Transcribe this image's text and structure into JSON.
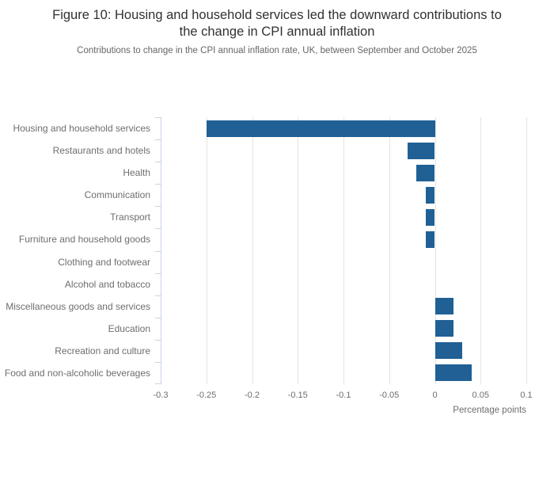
{
  "figure": {
    "title": "Figure 10: Housing and household services led the downward contributions to the change in CPI annual inflation",
    "subtitle": "Contributions to change in the CPI annual inflation rate, UK, between September and October 2025"
  },
  "chart_data": {
    "type": "bar",
    "orientation": "horizontal",
    "title": "Figure 10: Housing and household services led the downward contributions to the change in CPI annual inflation",
    "subtitle": "Contributions to change in the CPI annual inflation rate, UK, between September and October 2025",
    "categories": [
      "Housing and household services",
      "Restaurants and hotels",
      "Health",
      "Communication",
      "Transport",
      "Furniture and household goods",
      "Clothing and footwear",
      "Alcohol and tobacco",
      "Miscellaneous goods and services",
      "Education",
      "Recreation and culture",
      "Food and non-alcoholic beverages"
    ],
    "values": [
      -0.25,
      -0.03,
      -0.02,
      -0.01,
      -0.01,
      -0.01,
      0,
      0,
      0.02,
      0.02,
      0.03,
      0.04
    ],
    "xlabel": "Percentage points",
    "ylabel": "",
    "xlim": [
      -0.3,
      0.1
    ],
    "xticks": [
      -0.3,
      -0.25,
      -0.2,
      -0.15,
      -0.1,
      -0.05,
      0,
      0.05,
      0.1
    ],
    "xtick_labels": [
      "-0.3",
      "-0.25",
      "-0.2",
      "-0.15",
      "-0.1",
      "-0.05",
      "0",
      "0.05",
      "0.1"
    ],
    "grid": true,
    "legend": "none",
    "colors": {
      "bar": "#206095",
      "grid": "#e3e3e3",
      "axis": "#c8d1e5",
      "tick_text": "#6e6e6e",
      "title_text": "#313131",
      "subtitle_text": "#666666"
    }
  }
}
